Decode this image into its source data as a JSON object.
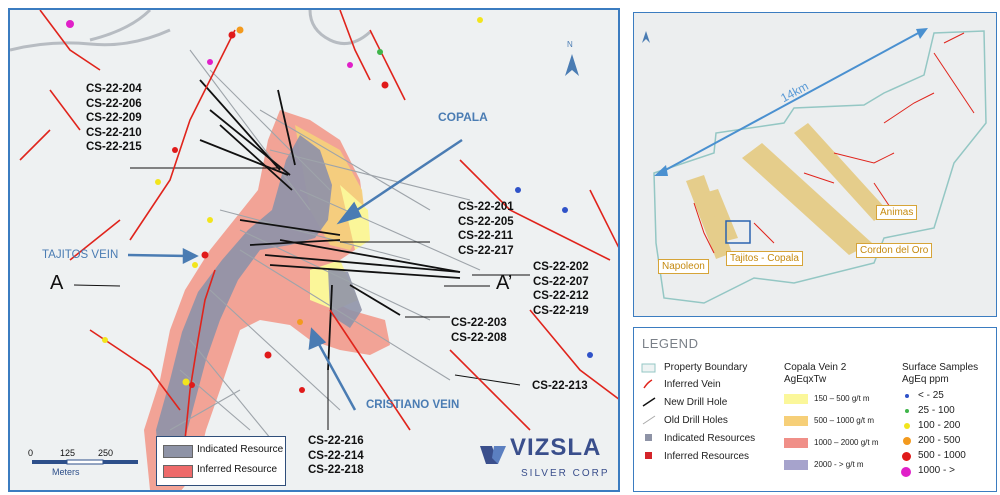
{
  "main_map": {
    "north_label": "N",
    "drill_groups": [
      {
        "lines": [
          "CS-22-204",
          "CS-22-206",
          "CS-22-209",
          "CS-22-210",
          "CS-22-215"
        ]
      },
      {
        "lines": [
          "CS-22-201",
          "CS-22-205",
          "CS-22-211",
          "CS-22-217"
        ]
      },
      {
        "lines": [
          "CS-22-202",
          "CS-22-207",
          "CS-22-212",
          "CS-22-219"
        ]
      },
      {
        "lines": [
          "CS-22-203",
          "CS-22-208"
        ]
      },
      {
        "lines": [
          "CS-22-213"
        ]
      },
      {
        "lines": [
          "CS-22-216",
          "CS-22-214",
          "CS-22-218"
        ]
      }
    ],
    "copala_label": "COPALA",
    "tajitos_label": "TAJITOS VEIN",
    "cristiano_label": "CRISTIANO VEIN",
    "section_a": "A",
    "section_a_prime": "A’",
    "scale": {
      "ticks": [
        "0",
        "125",
        "250"
      ],
      "unit": "Meters"
    },
    "resource_legend": [
      {
        "label": "Indicated Resource",
        "color": "#8e93a6"
      },
      {
        "label": "Inferred Resource",
        "color": "#ee6a6a"
      }
    ],
    "logo": {
      "name": "VIZSLA",
      "sub": "SILVER CORP"
    }
  },
  "inset_map": {
    "distance_label": "14km",
    "zones": [
      "Napoleon",
      "Tajitos - Copala",
      "Animas",
      "Cordon del Oro"
    ]
  },
  "legend": {
    "title": "LEGEND",
    "symbols": [
      "Property Boundary",
      "Inferred Vein",
      "New Drill Hole",
      "Old Drill Holes",
      "Indicated Resources",
      "Inferred Resources"
    ],
    "vein_header": [
      "Copala Vein 2",
      "AgEqxTw"
    ],
    "vein_classes": [
      {
        "label": "150 – 500 g/t m",
        "color": "#fbf79a"
      },
      {
        "label": "500 – 1000 g/t m",
        "color": "#f6cf78"
      },
      {
        "label": "1000 – 2000 g/t m",
        "color": "#f08f88"
      },
      {
        "label": "2000 - > g/t m",
        "color": "#a6a3cc"
      }
    ],
    "sample_header": [
      "Surface Samples",
      "AgEq ppm"
    ],
    "sample_classes": [
      {
        "label": "< - 25",
        "color": "#2f52c8"
      },
      {
        "label": "25 - 100",
        "color": "#3fb54a"
      },
      {
        "label": "100 - 200",
        "color": "#f2e51c"
      },
      {
        "label": "200 - 500",
        "color": "#f39a1e"
      },
      {
        "label": "500 - 1000",
        "color": "#e01a1a"
      },
      {
        "label": "1000 - >",
        "color": "#e020c8"
      }
    ]
  }
}
